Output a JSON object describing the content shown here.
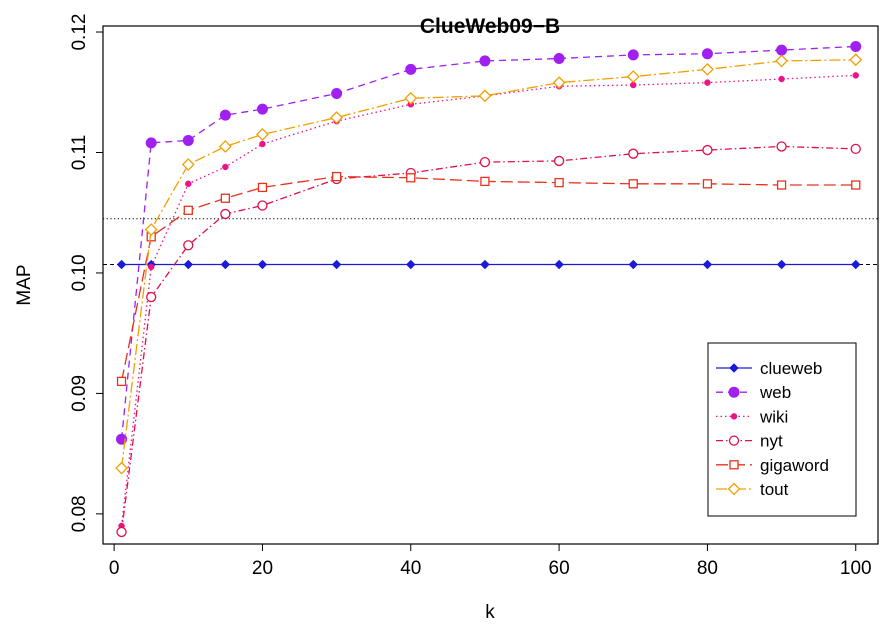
{
  "chart_data": {
    "type": "line",
    "title": "ClueWeb09−B",
    "xlabel": "k",
    "ylabel": "MAP",
    "xlim": [
      -1.5,
      103
    ],
    "ylim": [
      0.0775,
      0.1205
    ],
    "xticks": [
      0,
      20,
      40,
      60,
      80,
      100
    ],
    "yticks": [
      0.08,
      0.09,
      0.1,
      0.11,
      0.12
    ],
    "ytick_labels": [
      "0.08",
      "0.09",
      "0.10",
      "0.11",
      "0.12"
    ],
    "legend_position": "bottom-right",
    "reference_lines": [
      {
        "y": 0.1007,
        "style": "dashed",
        "color": "#000000"
      },
      {
        "y": 0.1045,
        "style": "dotted",
        "color": "#000000"
      }
    ],
    "x": [
      1,
      5,
      10,
      15,
      20,
      30,
      40,
      50,
      60,
      70,
      80,
      90,
      100
    ],
    "series": [
      {
        "name": "clueweb",
        "color": "#1a1ad9",
        "dash": "",
        "marker": "diamond-filled",
        "values": [
          0.1007,
          0.1007,
          0.1007,
          0.1007,
          0.1007,
          0.1007,
          0.1007,
          0.1007,
          0.1007,
          0.1007,
          0.1007,
          0.1007,
          0.1007
        ]
      },
      {
        "name": "web",
        "color": "#a020f0",
        "dash": "7,5",
        "marker": "circle-filled",
        "values": [
          0.0862,
          0.1108,
          0.111,
          0.1131,
          0.1136,
          0.1149,
          0.1169,
          0.1176,
          0.1178,
          0.1181,
          0.1182,
          0.1185,
          0.1188
        ]
      },
      {
        "name": "wiki",
        "color": "#ee1289",
        "dash": "1.5,3",
        "marker": "dot-filled",
        "values": [
          0.079,
          0.1005,
          0.1074,
          0.1088,
          0.1107,
          0.1126,
          0.114,
          0.1147,
          0.1155,
          0.1156,
          0.1158,
          0.1161,
          0.1164
        ]
      },
      {
        "name": "nyt",
        "color": "#e0104a",
        "dash": "7,3,1.5,3",
        "marker": "circle-open",
        "values": [
          0.0785,
          0.098,
          0.1023,
          0.1049,
          0.1056,
          0.1078,
          0.1083,
          0.1092,
          0.1093,
          0.1099,
          0.1102,
          0.1105,
          0.1103
        ]
      },
      {
        "name": "gigaword",
        "color": "#e8321e",
        "dash": "12,5",
        "marker": "square-open",
        "values": [
          0.091,
          0.103,
          0.1052,
          0.1062,
          0.1071,
          0.108,
          0.1079,
          0.1076,
          0.1075,
          0.1074,
          0.1074,
          0.1073,
          0.1073
        ]
      },
      {
        "name": "tout",
        "color": "#f0a000",
        "dash": "11,3,2,3",
        "marker": "diamond-open",
        "values": [
          0.0838,
          0.1036,
          0.109,
          0.1105,
          0.1115,
          0.1129,
          0.1145,
          0.1147,
          0.1158,
          0.1163,
          0.1169,
          0.1176,
          0.1177
        ]
      }
    ]
  }
}
